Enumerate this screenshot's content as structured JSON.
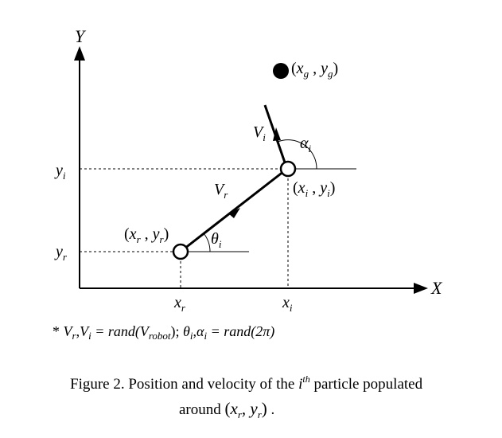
{
  "diagram": {
    "axis_labels": {
      "x": "X",
      "y": "Y"
    },
    "goal": {
      "label_x": "x",
      "label_sub_x": "g",
      "label_y": "y",
      "label_sub_y": "g"
    },
    "robot": {
      "label_x": "x",
      "label_sub_x": "r",
      "label_y": "y",
      "label_sub_y": "r"
    },
    "particle": {
      "label_x": "x",
      "label_sub_x": "i",
      "label_y": "y",
      "label_sub_y": "i"
    },
    "ticks": {
      "x_r": {
        "main": "x",
        "sub": "r"
      },
      "x_i": {
        "main": "x",
        "sub": "i"
      },
      "y_i": {
        "main": "y",
        "sub": "i"
      },
      "y_r": {
        "main": "y",
        "sub": "r"
      }
    },
    "vectors": {
      "V_r": {
        "main": "V",
        "sub": "r"
      },
      "V_i": {
        "main": "V",
        "sub": "i"
      }
    },
    "angles": {
      "theta_i": {
        "main": "θ",
        "sub": "i"
      },
      "alpha_i": {
        "main": "α",
        "sub": "i"
      }
    },
    "note": {
      "star": "*",
      "v1": "V",
      "v1_sub": "r",
      "sep1": ",",
      "v2": "V",
      "v2_sub": "i",
      "eq1": " = rand(V",
      "eq1_sub": "robot",
      "eq1_end": ");",
      "t1": "θ",
      "t1_sub": "i",
      "sep2": ",",
      "t2": "α",
      "t2_sub": "i",
      "eq2": " = rand(2π)"
    }
  },
  "caption": {
    "line1_prefix": "Figure 2.    Position and velocity of the ",
    "line1_i": "i",
    "line1_th": "th",
    "line1_suffix": " particle populated",
    "line2_prefix": "around ",
    "line2_paren_open": "(",
    "line2_x": "x",
    "line2_x_sub": "r",
    "line2_comma": ", ",
    "line2_y": "y",
    "line2_y_sub": "r",
    "line2_paren_close": ")",
    "line2_period": " ."
  }
}
